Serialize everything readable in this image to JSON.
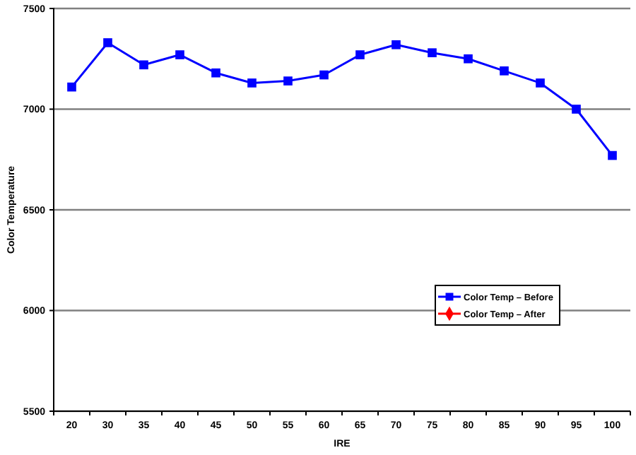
{
  "chart_data": {
    "type": "line",
    "xlabel": "IRE",
    "ylabel": "Color Temperature",
    "categories": [
      "20",
      "30",
      "35",
      "40",
      "45",
      "50",
      "55",
      "60",
      "65",
      "70",
      "75",
      "80",
      "85",
      "90",
      "95",
      "100"
    ],
    "series": [
      {
        "name": "Color Temp – Before",
        "color": "#0000ff",
        "marker": "square",
        "values": [
          7110,
          7330,
          7220,
          7270,
          7180,
          7130,
          7140,
          7170,
          7270,
          7320,
          7280,
          7250,
          7190,
          7130,
          7000,
          6770
        ]
      },
      {
        "name": "Color Temp – After",
        "color": "#ff0000",
        "marker": "diamond",
        "values": [
          null,
          null,
          null,
          null,
          null,
          null,
          null,
          null,
          null,
          null,
          null,
          null,
          null,
          null,
          null,
          null
        ]
      }
    ],
    "ylim": [
      5500,
      7500
    ],
    "yticks": [
      5500,
      6000,
      6500,
      7000,
      7500
    ],
    "grid": "y",
    "legend": "right"
  }
}
